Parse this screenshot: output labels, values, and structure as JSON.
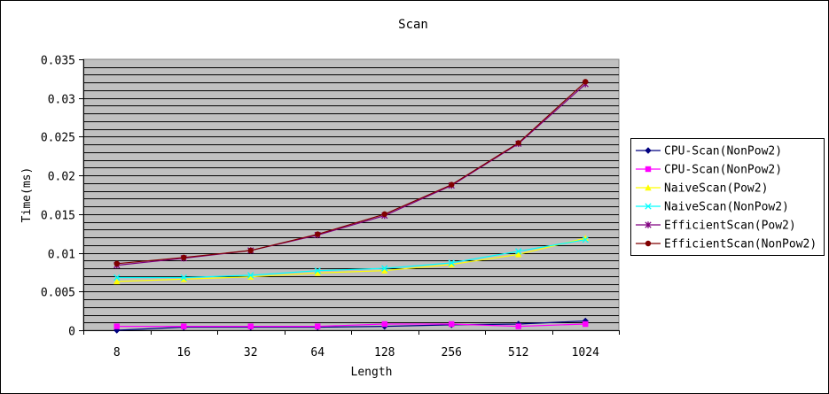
{
  "chart_data": {
    "type": "line",
    "title": "Scan",
    "xlabel": "Length",
    "ylabel": "Time(ms)",
    "categories": [
      "8",
      "16",
      "32",
      "64",
      "128",
      "256",
      "512",
      "1024"
    ],
    "ylim": [
      0,
      0.035
    ],
    "yticks": [
      "0",
      "0.005",
      "0.01",
      "0.015",
      "0.02",
      "0.025",
      "0.03",
      "0.035"
    ],
    "grid": true,
    "plot_background": "#c0c0c0",
    "legend_position": "right",
    "series": [
      {
        "name": "CPU-Scan(NonPow2)",
        "color": "#000080",
        "marker": "diamond",
        "values": [
          0.0,
          0.0004,
          0.0004,
          0.0004,
          0.0005,
          0.0007,
          0.0008,
          0.0012
        ]
      },
      {
        "name": "CPU-Scan(NonPow2)",
        "color": "#ff00ff",
        "marker": "square",
        "values": [
          0.0005,
          0.0005,
          0.0005,
          0.0005,
          0.0008,
          0.0008,
          0.0005,
          0.0008
        ]
      },
      {
        "name": "NaiveScan(Pow2)",
        "color": "#ffff00",
        "marker": "triangle",
        "values": [
          0.0063,
          0.0066,
          0.0069,
          0.0074,
          0.0077,
          0.0085,
          0.0098,
          0.0119
        ]
      },
      {
        "name": "NaiveScan(NonPow2)",
        "color": "#00ffff",
        "marker": "x",
        "values": [
          0.0068,
          0.0068,
          0.0071,
          0.0077,
          0.008,
          0.0087,
          0.0102,
          0.0117
        ]
      },
      {
        "name": "EfficientScan(Pow2)",
        "color": "#800080",
        "marker": "star",
        "values": [
          0.0084,
          0.0093,
          0.0103,
          0.0123,
          0.0148,
          0.0187,
          0.0241,
          0.0318
        ]
      },
      {
        "name": "EfficientScan(NonPow2)",
        "color": "#800000",
        "marker": "circle",
        "values": [
          0.0086,
          0.0094,
          0.0103,
          0.0124,
          0.015,
          0.0188,
          0.0242,
          0.0321
        ]
      }
    ]
  }
}
